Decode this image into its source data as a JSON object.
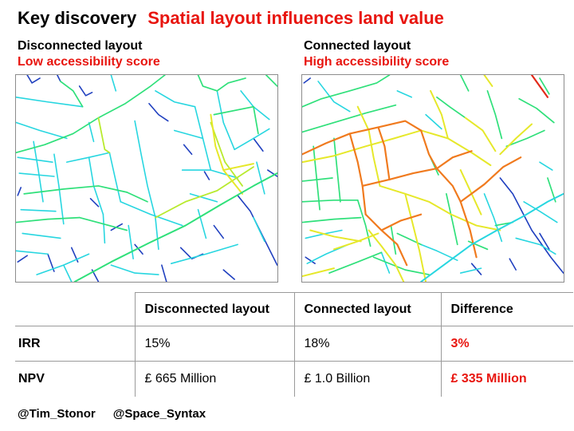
{
  "title": {
    "label": "Key discovery",
    "text": "Spatial layout influences land value"
  },
  "panels": [
    {
      "heading": "Disconnected layout",
      "subheading": "Low accessibility score"
    },
    {
      "heading": "Connected layout",
      "subheading": "High accessibility score"
    }
  ],
  "colors": {
    "accent": "#e8150f",
    "low_access": "#1f3fbf",
    "mid_low_access": "#27d6e0",
    "mid_access": "#2fe07a",
    "mid_high_access": "#e6e82a",
    "high_access": "#f07a1e",
    "top_access": "#e22a1a"
  },
  "table": {
    "headers": [
      "",
      "Disconnected layout",
      "Connected layout",
      "Difference"
    ],
    "rows": [
      {
        "label": "IRR",
        "disconnected": "15%",
        "connected": "18%",
        "difference": "3%"
      },
      {
        "label": "NPV",
        "disconnected": "£ 665 Million",
        "connected": "£ 1.0 Billion",
        "difference": "£ 335 Million"
      }
    ]
  },
  "credits": [
    "@Tim_Stonor",
    "@Space_Syntax"
  ]
}
